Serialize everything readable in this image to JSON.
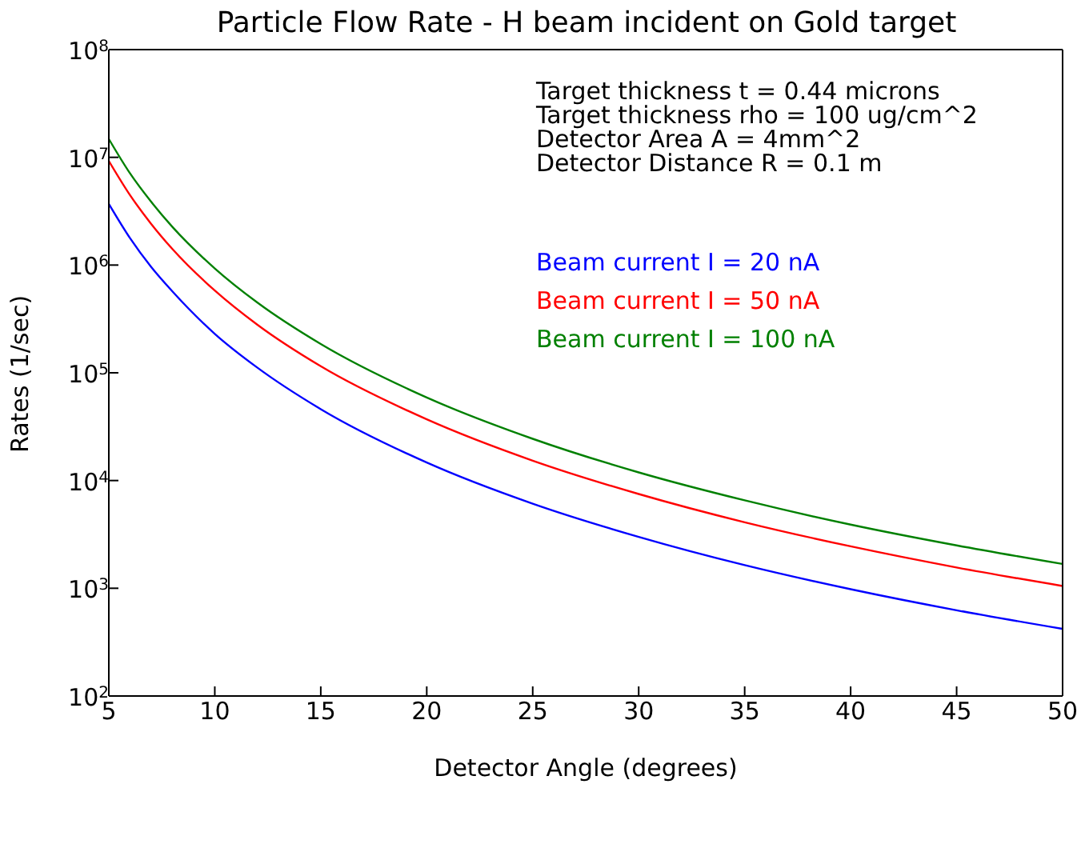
{
  "chart_data": {
    "type": "line",
    "title": "Particle Flow Rate - H beam incident on Gold target",
    "xlabel": "Detector Angle (degrees)",
    "ylabel": "Rates (1/sec)",
    "x": [
      5,
      6,
      7,
      8,
      10,
      12,
      15,
      20,
      25,
      30,
      35,
      40,
      45,
      50
    ],
    "series": [
      {
        "name": "Beam current I = 20 nA",
        "color": "#0000ff",
        "values": [
          3700000,
          1780000,
          960000,
          570000,
          230000,
          112000,
          46000,
          14700,
          6100,
          3000,
          1640,
          980,
          625,
          420
        ]
      },
      {
        "name": "Beam current I = 50 nA",
        "color": "#ff0000",
        "values": [
          9250000,
          4460000,
          2410000,
          1410000,
          580000,
          280000,
          115000,
          37000,
          15300,
          7500,
          4100,
          2450,
          1560,
          1050
        ]
      },
      {
        "name": "Beam current I = 100 nA",
        "color": "#008000",
        "values": [
          14800000,
          7100000,
          3860000,
          2260000,
          930000,
          450000,
          185000,
          59000,
          24400,
          11900,
          6550,
          3900,
          2500,
          1680
        ]
      }
    ],
    "annotations": [
      "Target thickness t = 0.44 microns",
      "Target thickness rho = 100 ug/cm^2",
      "Detector Area A = 4mm^2",
      "Detector Distance R = 0.1 m"
    ],
    "log": "y",
    "grid": false,
    "legend": "top right",
    "marker": "none",
    "line_style": "solid",
    "xlim": [
      5,
      50
    ],
    "xticks": [
      5,
      10,
      15,
      20,
      25,
      30,
      35,
      40,
      45,
      50
    ],
    "ylim": [
      100,
      100000000
    ],
    "yticks": [
      {
        "value": 100,
        "label": "10$^{2}$"
      },
      {
        "value": 1000,
        "label": "10$^{3}$"
      },
      {
        "value": 10000,
        "label": "10$^{4}$"
      },
      {
        "value": 100000,
        "label": "10$^{5}$"
      },
      {
        "value": 1000000,
        "label": "10$^{6}$"
      },
      {
        "value": 10000000,
        "label": "10$^{7}$"
      },
      {
        "value": 100000000,
        "label": "10$^{8}$"
      }
    ]
  }
}
